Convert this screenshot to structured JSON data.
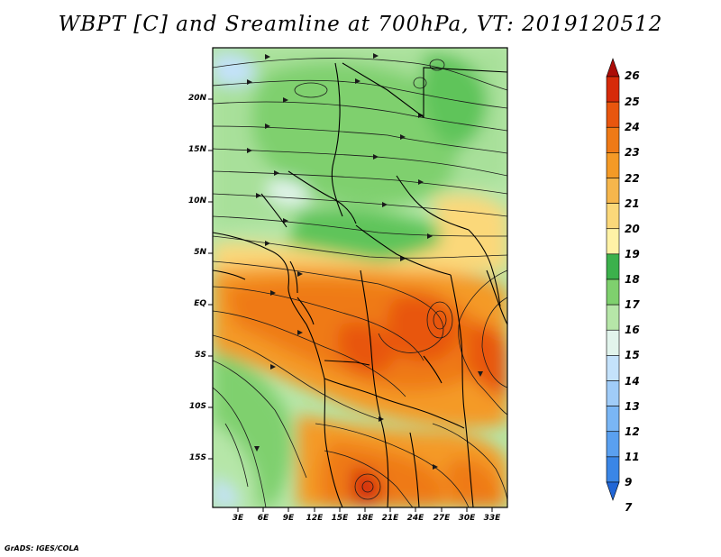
{
  "title": "WBPT [C] and Sreamline at 700hPa, VT: 2019120512",
  "credit": "GrADS: IGES/COLA",
  "map": {
    "variable": "WBPT",
    "units": "C",
    "level": "700hPa",
    "valid_time": "2019120512",
    "lat_labels": [
      "20N",
      "15N",
      "10N",
      "5N",
      "EQ",
      "5S",
      "10S",
      "15S"
    ],
    "lon_labels": [
      "3E",
      "6E",
      "9E",
      "12E",
      "15E",
      "18E",
      "21E",
      "24E",
      "27E",
      "30E",
      "33E"
    ]
  },
  "colorbar": {
    "levels": [
      "7",
      "9",
      "11",
      "12",
      "13",
      "14",
      "15",
      "16",
      "17",
      "18",
      "19",
      "20",
      "21",
      "22",
      "23",
      "24",
      "25",
      "26"
    ],
    "colors": [
      "#2166d6",
      "#3a86e6",
      "#5aa0f0",
      "#7ab6f5",
      "#a0ccf8",
      "#c4e2fb",
      "#e2f4ec",
      "#b6e6a8",
      "#7fd06e",
      "#3cb14c",
      "#fff2a6",
      "#fbd87a",
      "#f6b64c",
      "#f49a26",
      "#ef7a16",
      "#e8560e",
      "#d62a0a",
      "#ab0c08"
    ]
  }
}
